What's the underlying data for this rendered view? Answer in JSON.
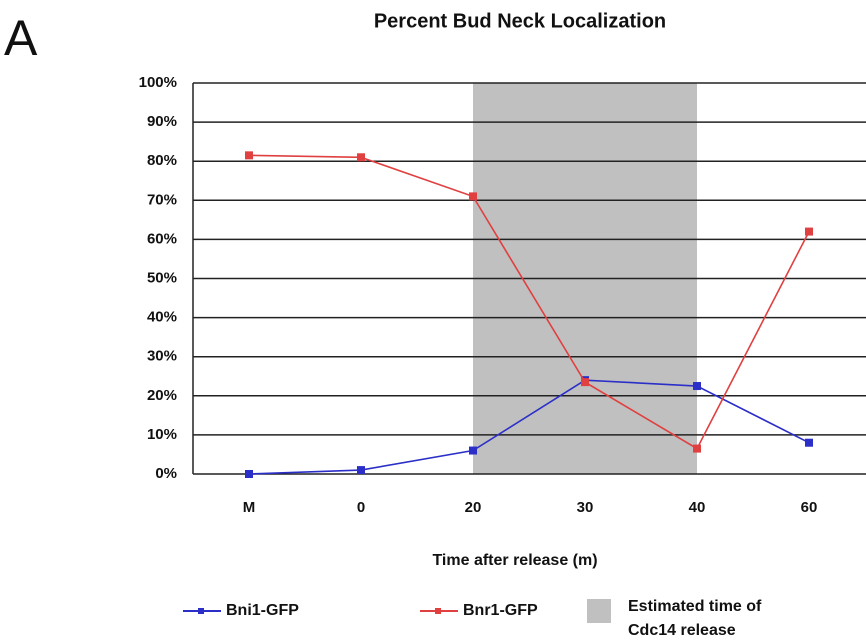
{
  "chart_data": {
    "type": "line",
    "panel_label": "A",
    "title": "Percent Bud Neck Localization",
    "x_label": "Time after release (m)",
    "categories": [
      "M",
      "0",
      "20",
      "30",
      "40",
      "60"
    ],
    "series": [
      {
        "name": "Bni1-GFP",
        "color": "#2b2fc8",
        "values": [
          0,
          1,
          6,
          24,
          22.5,
          8
        ]
      },
      {
        "name": "Bnr1-GFP",
        "color": "#e04040",
        "values": [
          81.5,
          81,
          71,
          23.5,
          6.5,
          62
        ]
      }
    ],
    "shaded_region": {
      "from": "20",
      "to": "40",
      "color": "#c0c0c0",
      "label": [
        "Estimated time of",
        "Cdc14 release"
      ]
    },
    "ylim": [
      0,
      100
    ],
    "yticks": [
      {
        "value": 0,
        "label": "0%"
      },
      {
        "value": 10,
        "label": "10%"
      },
      {
        "value": 20,
        "label": "20%"
      },
      {
        "value": 30,
        "label": "30%"
      },
      {
        "value": 40,
        "label": "40%"
      },
      {
        "value": 50,
        "label": "50%"
      },
      {
        "value": 60,
        "label": "60%"
      },
      {
        "value": 70,
        "label": "70%"
      },
      {
        "value": 80,
        "label": "80%"
      },
      {
        "value": 90,
        "label": "90%"
      },
      {
        "value": 100,
        "label": "100%"
      }
    ],
    "grid": true
  }
}
